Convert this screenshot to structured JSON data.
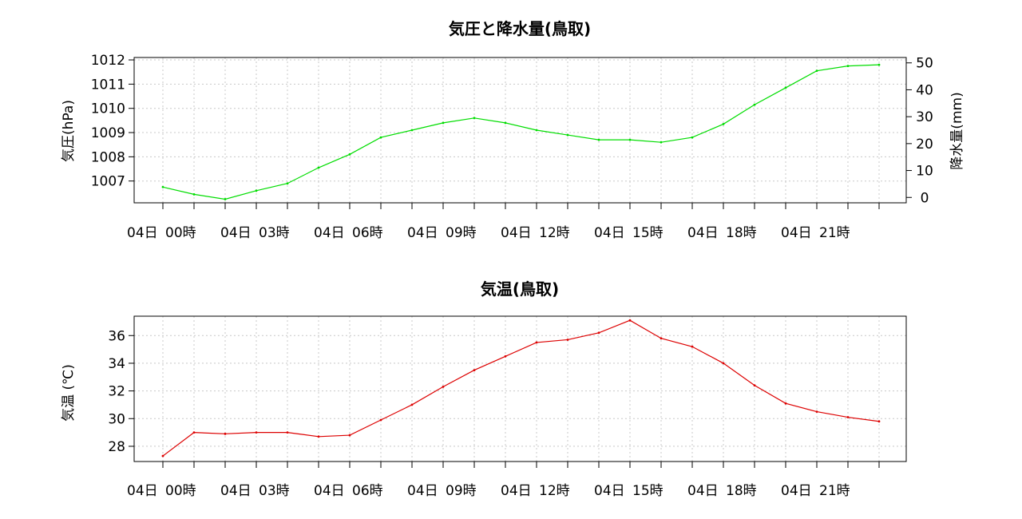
{
  "chart_data": [
    {
      "type": "line",
      "title": "気圧と降水量(鳥取)",
      "ylabel": "気圧(hPa)",
      "ylabel_right": "降水量(mm)",
      "ylim": [
        1006.1,
        1012.1
      ],
      "y_ticks": [
        1007,
        1008,
        1009,
        1010,
        1011,
        1012
      ],
      "ylim_right": [
        -2,
        52
      ],
      "y_ticks_right": [
        0,
        10,
        20,
        30,
        40,
        50
      ],
      "x_labels": [
        "04日",
        "00時",
        "04日",
        "03時",
        "04日",
        "06時",
        "04日",
        "09時",
        "04日",
        "12時",
        "04日",
        "15時",
        "04日",
        "18時",
        "04日",
        "21時"
      ],
      "grid": true,
      "series": [
        {
          "color": "#00dd00",
          "values": [
            1006.75,
            1006.45,
            1006.25,
            1006.6,
            1006.9,
            1007.55,
            1008.1,
            1008.8,
            1009.1,
            1009.4,
            1009.6,
            1009.4,
            1009.1,
            1008.9,
            1008.7,
            1008.7,
            1008.6,
            1008.8,
            1009.35,
            1010.15,
            1010.85,
            1011.55,
            1011.75,
            1011.8
          ]
        }
      ]
    },
    {
      "type": "line",
      "title": "気温(鳥取)",
      "ylabel": "気温 (℃)",
      "ylim": [
        26.9,
        37.4
      ],
      "y_ticks": [
        28,
        30,
        32,
        34,
        36
      ],
      "x_labels": [
        "04日",
        "00時",
        "04日",
        "03時",
        "04日",
        "06時",
        "04日",
        "09時",
        "04日",
        "12時",
        "04日",
        "15時",
        "04日",
        "18時",
        "04日",
        "21時"
      ],
      "grid": true,
      "series": [
        {
          "color": "#dd0000",
          "values": [
            27.3,
            29.0,
            28.9,
            29.0,
            29.0,
            28.7,
            28.8,
            29.9,
            31.0,
            32.3,
            33.5,
            34.5,
            35.5,
            35.7,
            36.2,
            37.1,
            35.8,
            35.2,
            34.0,
            32.4,
            31.1,
            30.5,
            30.1,
            29.8
          ]
        }
      ]
    }
  ]
}
